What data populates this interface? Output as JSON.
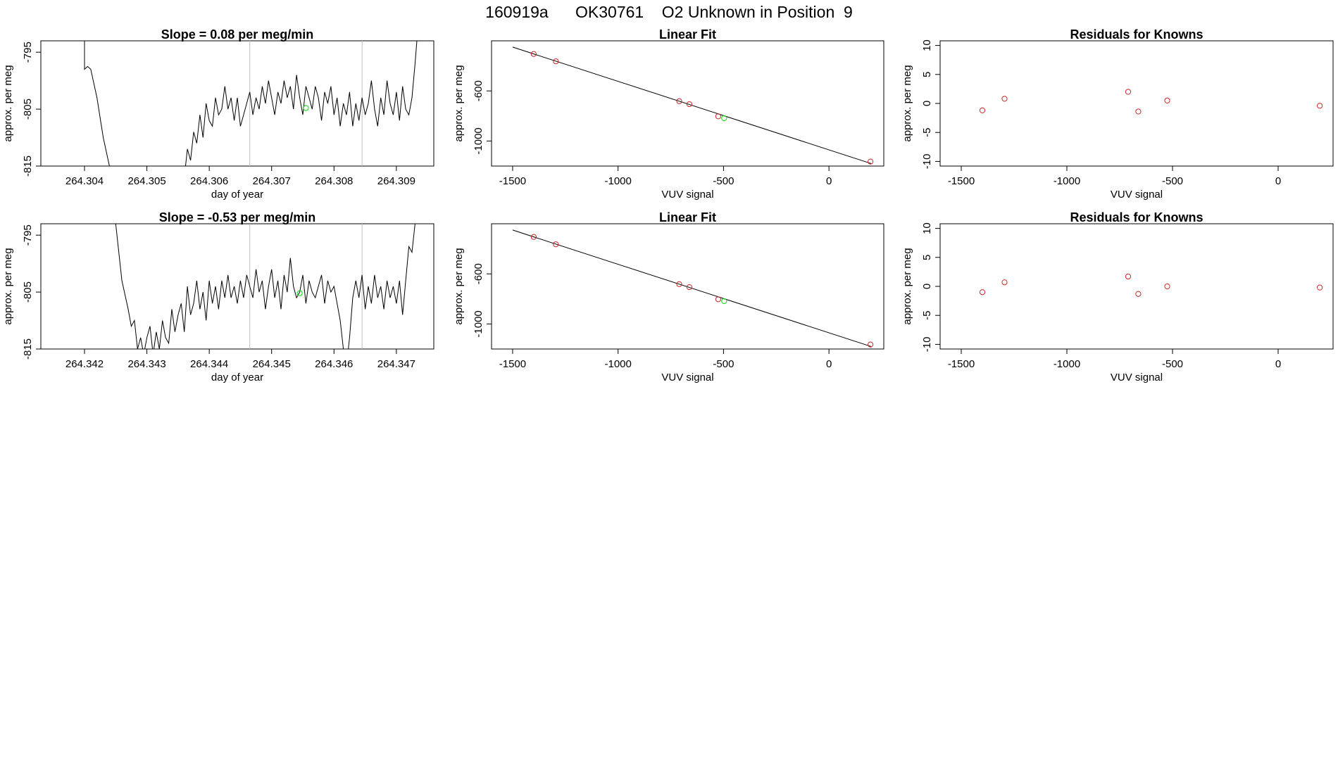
{
  "figure": {
    "title": "160919a      OK30761    O2 Unknown in Position  9"
  },
  "colors": {
    "line": "#000000",
    "known": "#cd2626",
    "unknown": "#00dd00",
    "vline": "#bebebe"
  },
  "chart_data": [
    {
      "id": "ts1",
      "type": "line",
      "title": "Slope =  0.08  per meg/min",
      "xlabel": "day of year",
      "ylabel": "approx. per meg",
      "xlim": [
        264.3033,
        264.3096
      ],
      "ylim": [
        -815,
        -793
      ],
      "xticks": [
        264.304,
        264.305,
        264.306,
        264.307,
        264.308,
        264.309
      ],
      "xtick_labels": [
        "264.304",
        "264.305",
        "264.306",
        "264.307",
        "264.308",
        "264.309"
      ],
      "yticks": [
        -815,
        -805,
        -795
      ],
      "ytick_labels": [
        "-815",
        "-805",
        "-795"
      ],
      "vlines": [
        264.30665,
        264.30845
      ],
      "unknown_point": {
        "x": 264.30755,
        "y": -804.8
      },
      "x": [
        264.30395,
        264.304,
        264.304,
        264.30405,
        264.3041,
        264.3042,
        264.3043,
        264.3044,
        264.3045,
        264.3046,
        264.3055,
        264.30555,
        264.3056,
        264.30565,
        264.3057,
        264.30575,
        264.3058,
        264.30585,
        264.3059,
        264.30595,
        264.306,
        264.30605,
        264.3061,
        264.30615,
        264.3062,
        264.30625,
        264.3063,
        264.30635,
        264.3064,
        264.30645,
        264.3065,
        264.30655,
        264.3066,
        264.30665,
        264.3067,
        264.30675,
        264.3068,
        264.30685,
        264.3069,
        264.30695,
        264.307,
        264.30705,
        264.3071,
        264.30715,
        264.3072,
        264.30725,
        264.3073,
        264.30735,
        264.3074,
        264.30745,
        264.3075,
        264.30755,
        264.3076,
        264.30765,
        264.3077,
        264.30775,
        264.3078,
        264.30785,
        264.3079,
        264.30795,
        264.308,
        264.30805,
        264.3081,
        264.30815,
        264.3082,
        264.30825,
        264.3083,
        264.30835,
        264.3084,
        264.30845,
        264.3085,
        264.30855,
        264.3086,
        264.30865,
        264.3087,
        264.30875,
        264.3088,
        264.30885,
        264.3089,
        264.30895,
        264.309,
        264.30905,
        264.3091,
        264.30915,
        264.3092,
        264.30925,
        264.3093,
        264.30935
      ],
      "y": [
        -793,
        -793,
        -798,
        -797.5,
        -798,
        -803,
        -810,
        -815,
        -820,
        -825,
        -825,
        -815,
        -817,
        -812,
        -814,
        -809,
        -811,
        -806,
        -810,
        -804,
        -807,
        -808,
        -803,
        -806,
        -805,
        -801,
        -805,
        -803,
        -807,
        -803,
        -808,
        -806,
        -804,
        -802,
        -806,
        -803,
        -805,
        -801,
        -804,
        -800,
        -803,
        -806,
        -802,
        -804,
        -800,
        -803,
        -801,
        -805,
        -799,
        -803,
        -806,
        -801,
        -803,
        -805,
        -801,
        -803,
        -807,
        -802,
        -804,
        -801,
        -806,
        -803,
        -808,
        -804,
        -806,
        -802,
        -808,
        -804,
        -807,
        -803,
        -806,
        -804,
        -800,
        -805,
        -808,
        -803,
        -806,
        -800,
        -804,
        -806,
        -802,
        -807,
        -801,
        -805,
        -806,
        -803,
        -797,
        -790
      ]
    },
    {
      "id": "fit1",
      "type": "scatter",
      "title": "Linear Fit",
      "xlabel": "VUV signal",
      "ylabel": "approx. per meg",
      "xlim": [
        -1600,
        260
      ],
      "ylim": [
        -1200,
        -200
      ],
      "xticks": [
        -1500,
        -1000,
        -500,
        0
      ],
      "xtick_labels": [
        "-1500",
        "-1000",
        "-500",
        "0"
      ],
      "yticks": [
        -1000,
        -600
      ],
      "ytick_labels": [
        "-1000",
        "-600"
      ],
      "fit_line": {
        "x": [
          -1500,
          200
        ],
        "y": [
          -250,
          -1180
        ]
      },
      "knowns": {
        "x": [
          -1400,
          -1295,
          -710,
          -662,
          -525,
          197
        ],
        "y": [
          -305,
          -364,
          -682,
          -706,
          -803,
          -1164
        ]
      },
      "unknown_point": {
        "x": -497,
        "y": -818
      }
    },
    {
      "id": "res1",
      "type": "scatter",
      "title": "Residuals for Knowns",
      "xlabel": "VUV signal",
      "ylabel": "approx. per meg",
      "xlim": [
        -1600,
        260
      ],
      "ylim": [
        -10.8,
        10.8
      ],
      "xticks": [
        -1500,
        -1000,
        -500,
        0
      ],
      "xtick_labels": [
        "-1500",
        "-1000",
        "-500",
        "0"
      ],
      "yticks": [
        -10,
        -5,
        0,
        5,
        10
      ],
      "ytick_labels": [
        "-10",
        "-5",
        "0",
        "5",
        "10"
      ],
      "knowns": {
        "x": [
          -1400,
          -1295,
          -710,
          -662,
          -525,
          197
        ],
        "y": [
          -1.2,
          0.8,
          2.0,
          -1.4,
          0.5,
          -0.4
        ]
      }
    },
    {
      "id": "ts2",
      "type": "line",
      "title": "Slope =  -0.53  per meg/min",
      "xlabel": "day of year",
      "ylabel": "approx. per meg",
      "xlim": [
        264.3413,
        264.3476
      ],
      "ylim": [
        -815,
        -793
      ],
      "xticks": [
        264.342,
        264.343,
        264.344,
        264.345,
        264.346,
        264.347
      ],
      "xtick_labels": [
        "264.342",
        "264.343",
        "264.344",
        "264.345",
        "264.346",
        "264.347"
      ],
      "yticks": [
        -815,
        -805,
        -795
      ],
      "ytick_labels": [
        "-815",
        "-805",
        "-795"
      ],
      "vlines": [
        264.34465,
        264.34645
      ],
      "unknown_point": {
        "x": 264.34545,
        "y": -805.2
      },
      "x": [
        264.3425,
        264.3426,
        264.3427,
        264.34275,
        264.3428,
        264.34285,
        264.3429,
        264.34295,
        264.343,
        264.34305,
        264.3431,
        264.34315,
        264.3432,
        264.34325,
        264.3433,
        264.34335,
        264.3434,
        264.34345,
        264.3435,
        264.34355,
        264.3436,
        264.34365,
        264.3437,
        264.34375,
        264.3438,
        264.34385,
        264.3439,
        264.34395,
        264.344,
        264.34405,
        264.3441,
        264.34415,
        264.3442,
        264.34425,
        264.3443,
        264.34435,
        264.3444,
        264.34445,
        264.3445,
        264.34455,
        264.3446,
        264.34465,
        264.3447,
        264.34475,
        264.3448,
        264.34485,
        264.3449,
        264.34495,
        264.345,
        264.34505,
        264.3451,
        264.34515,
        264.3452,
        264.34525,
        264.3453,
        264.34535,
        264.3454,
        264.34545,
        264.3455,
        264.34555,
        264.3456,
        264.34565,
        264.3457,
        264.34575,
        264.3458,
        264.34585,
        264.3459,
        264.34595,
        264.346,
        264.34605,
        264.3461,
        264.34615,
        264.3462,
        264.34625,
        264.3463,
        264.34635,
        264.3464,
        264.34645,
        264.3465,
        264.34655,
        264.3466,
        264.34665,
        264.3467,
        264.34675,
        264.3468,
        264.34685,
        264.3469,
        264.34695,
        264.347,
        264.34705,
        264.3471,
        264.34715,
        264.3472,
        264.34725,
        264.3473,
        264.34735,
        264.3474
      ],
      "y": [
        -793,
        -803,
        -808,
        -811,
        -810,
        -815,
        -813,
        -816,
        -813,
        -811,
        -816,
        -812,
        -815,
        -810,
        -813,
        -814,
        -808,
        -812,
        -809,
        -807,
        -812,
        -804,
        -809,
        -807,
        -803,
        -808,
        -805,
        -810,
        -803,
        -807,
        -804,
        -808,
        -803,
        -806,
        -802,
        -806,
        -804,
        -807,
        -803,
        -806,
        -802,
        -804,
        -806,
        -801,
        -805,
        -803,
        -808,
        -804,
        -801,
        -806,
        -803,
        -808,
        -802,
        -805,
        -799,
        -804,
        -806,
        -805,
        -802,
        -807,
        -803,
        -805,
        -806,
        -804,
        -802,
        -807,
        -803,
        -805,
        -804,
        -807,
        -810,
        -815,
        -818,
        -813,
        -806,
        -803,
        -806,
        -802,
        -808,
        -804,
        -807,
        -802,
        -806,
        -804,
        -808,
        -803,
        -806,
        -804,
        -807,
        -803,
        -809,
        -803,
        -797,
        -798,
        -793,
        -790,
        -788
      ]
    },
    {
      "id": "fit2",
      "type": "scatter",
      "title": "Linear Fit",
      "xlabel": "VUV signal",
      "ylabel": "approx. per meg",
      "xlim": [
        -1600,
        260
      ],
      "ylim": [
        -1200,
        -200
      ],
      "xticks": [
        -1500,
        -1000,
        -500,
        0
      ],
      "xtick_labels": [
        "-1500",
        "-1000",
        "-500",
        "0"
      ],
      "yticks": [
        -1000,
        -600
      ],
      "ytick_labels": [
        "-1000",
        "-600"
      ],
      "fit_line": {
        "x": [
          -1500,
          200
        ],
        "y": [
          -250,
          -1180
        ]
      },
      "knowns": {
        "x": [
          -1400,
          -1295,
          -710,
          -662,
          -525,
          197
        ],
        "y": [
          -305,
          -364,
          -682,
          -706,
          -803,
          -1164
        ]
      },
      "unknown_point": {
        "x": -497,
        "y": -818
      }
    },
    {
      "id": "res2",
      "type": "scatter",
      "title": "Residuals for Knowns",
      "xlabel": "VUV signal",
      "ylabel": "approx. per meg",
      "xlim": [
        -1600,
        260
      ],
      "ylim": [
        -10.8,
        10.8
      ],
      "xticks": [
        -1500,
        -1000,
        -500,
        0
      ],
      "xtick_labels": [
        "-1500",
        "-1000",
        "-500",
        "0"
      ],
      "yticks": [
        -10,
        -5,
        0,
        5,
        10
      ],
      "ytick_labels": [
        "-10",
        "-5",
        "0",
        "5",
        "10"
      ],
      "knowns": {
        "x": [
          -1400,
          -1295,
          -710,
          -662,
          -525,
          197
        ],
        "y": [
          -1.0,
          0.7,
          1.7,
          -1.3,
          0.0,
          -0.2
        ]
      }
    }
  ]
}
